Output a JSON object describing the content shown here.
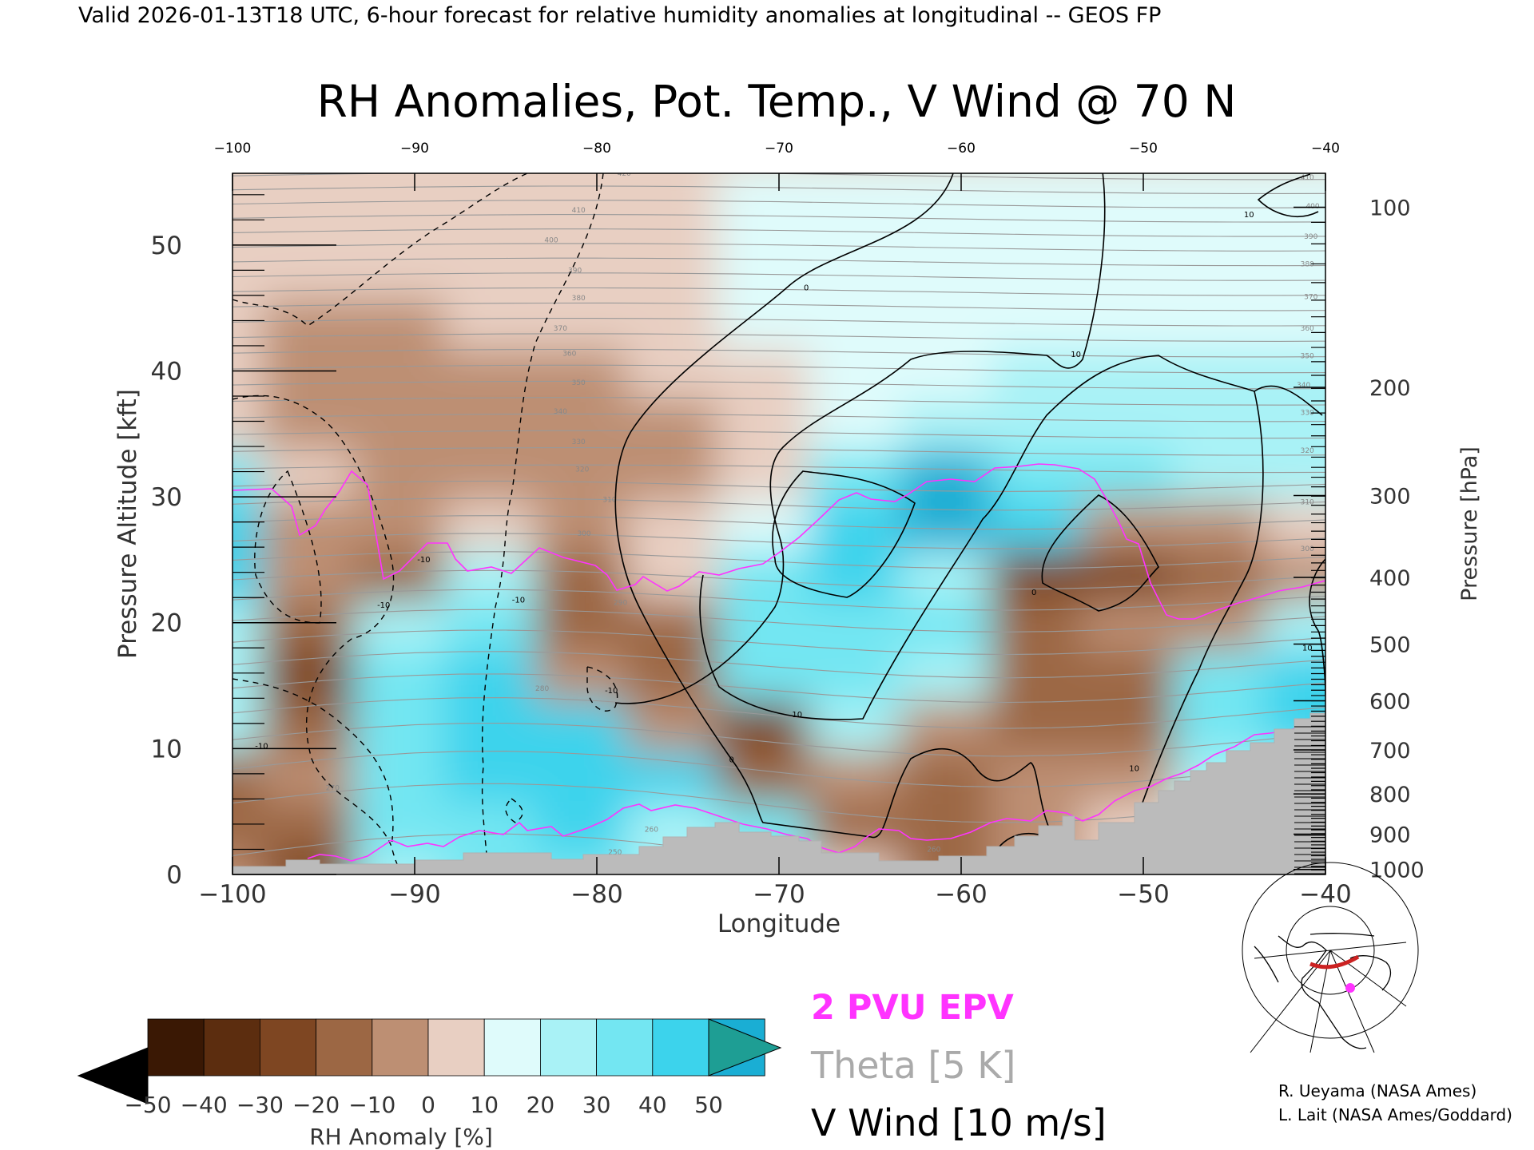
{
  "header": {
    "valid_line": "Valid 2026-01-13T18 UTC, 6-hour forecast for relative humidity anomalies at longitudinal -- GEOS FP"
  },
  "chart_data": {
    "type": "heatmap",
    "title": "RH Anomalies, Pot. Temp., V Wind @ 70 N",
    "xlabel": "Longitude",
    "ylabel_left": "Pressure Altitude [kft]",
    "ylabel_right": "Pressure [hPa]",
    "xlim": [
      -100,
      -40
    ],
    "ylim": [
      0,
      55.7
    ],
    "x_ticks": [
      -100,
      -90,
      -80,
      -70,
      -60,
      -50,
      -40
    ],
    "x_tick_labels": [
      "−100",
      "−90",
      "−80",
      "−70",
      "−60",
      "−50",
      "−40"
    ],
    "top_tick_labels": [
      "−100",
      "−90",
      "−80",
      "−70",
      "−60",
      "−50",
      "−40"
    ],
    "y_ticks": [
      0,
      10,
      20,
      30,
      40,
      50
    ],
    "pressure_ticks": [
      {
        "hPa": "100",
        "kft": 53.0
      },
      {
        "hPa": "200",
        "kft": 38.7
      },
      {
        "hPa": "300",
        "kft": 30.1
      },
      {
        "hPa": "400",
        "kft": 23.6
      },
      {
        "hPa": "500",
        "kft": 18.3
      },
      {
        "hPa": "600",
        "kft": 13.8
      },
      {
        "hPa": "700",
        "kft": 9.9
      },
      {
        "hPa": "800",
        "kft": 6.4
      },
      {
        "hPa": "900",
        "kft": 3.2
      },
      {
        "hPa": "1000",
        "kft": 0.4
      }
    ],
    "rh_anomaly_field": {
      "x": [
        -100,
        -95,
        -90,
        -85,
        -80,
        -75,
        -70,
        -65,
        -60,
        -55,
        -50,
        -45,
        -40
      ],
      "z": [
        1,
        5,
        9,
        13,
        17,
        21,
        25,
        29,
        33,
        37,
        41,
        45,
        49,
        53
      ],
      "values": [
        [
          -20,
          -35,
          15,
          25,
          20,
          10,
          15,
          -10,
          -25,
          -15,
          -10,
          0,
          10
        ],
        [
          -30,
          -25,
          20,
          25,
          30,
          15,
          20,
          -25,
          -30,
          -20,
          -10,
          5,
          10
        ],
        [
          -30,
          -20,
          25,
          30,
          35,
          35,
          -30,
          -20,
          -25,
          -15,
          -20,
          10,
          15
        ],
        [
          10,
          -25,
          25,
          30,
          35,
          -20,
          -35,
          15,
          -20,
          -30,
          -25,
          25,
          30
        ],
        [
          10,
          -35,
          20,
          30,
          -20,
          -30,
          20,
          25,
          15,
          -30,
          -25,
          25,
          35
        ],
        [
          15,
          -30,
          15,
          20,
          -25,
          -25,
          20,
          25,
          20,
          -30,
          -20,
          -15,
          10
        ],
        [
          30,
          -20,
          -25,
          15,
          -25,
          -10,
          20,
          35,
          15,
          -35,
          -35,
          -25,
          -15
        ],
        [
          35,
          -15,
          -20,
          -10,
          -15,
          -10,
          5,
          35,
          40,
          30,
          -15,
          -20,
          -10
        ],
        [
          25,
          -10,
          -15,
          -15,
          -15,
          -15,
          -5,
          20,
          40,
          25,
          20,
          10,
          15
        ],
        [
          -10,
          -15,
          -15,
          -15,
          -15,
          -15,
          -10,
          5,
          15,
          15,
          15,
          10,
          15
        ],
        [
          -10,
          -15,
          -15,
          -15,
          -15,
          -10,
          -5,
          0,
          5,
          10,
          10,
          10,
          10
        ],
        [
          -10,
          -15,
          -15,
          -10,
          -10,
          -5,
          0,
          0,
          5,
          5,
          5,
          5,
          5
        ],
        [
          -10,
          -10,
          -10,
          -10,
          -5,
          -5,
          0,
          0,
          5,
          5,
          5,
          5,
          5
        ],
        [
          -10,
          -10,
          -10,
          -5,
          -5,
          -5,
          0,
          0,
          0,
          5,
          5,
          5,
          5
        ]
      ]
    },
    "theta_label_samples": [
      {
        "value": "420",
        "x": -78.5,
        "z": 55.5
      },
      {
        "value": "410",
        "x": -81,
        "z": 52.6
      },
      {
        "value": "400",
        "x": -82.5,
        "z": 50.2
      },
      {
        "value": "390",
        "x": -81.2,
        "z": 47.8
      },
      {
        "value": "380",
        "x": -81,
        "z": 45.6
      },
      {
        "value": "370",
        "x": -82,
        "z": 43.2
      },
      {
        "value": "360",
        "x": -81.5,
        "z": 41.2
      },
      {
        "value": "350",
        "x": -81,
        "z": 38.9
      },
      {
        "value": "340",
        "x": -82,
        "z": 36.6
      },
      {
        "value": "330",
        "x": -81,
        "z": 34.2
      },
      {
        "value": "320",
        "x": -80.8,
        "z": 32.0
      },
      {
        "value": "310",
        "x": -79.3,
        "z": 29.6
      },
      {
        "value": "300",
        "x": -80.7,
        "z": 26.9
      },
      {
        "value": "290",
        "x": -78.7,
        "z": 21.4
      },
      {
        "value": "280",
        "x": -83,
        "z": 14.6
      },
      {
        "value": "270",
        "x": -94.5,
        "z": 6.7
      },
      {
        "value": "260",
        "x": -77,
        "z": 3.4
      },
      {
        "value": "250",
        "x": -79,
        "z": 1.6
      },
      {
        "value": "260",
        "x": -61.5,
        "z": 1.8
      },
      {
        "value": "410",
        "x": -41,
        "z": 55.2
      },
      {
        "value": "400",
        "x": -40.7,
        "z": 52.9
      },
      {
        "value": "390",
        "x": -40.8,
        "z": 50.5
      },
      {
        "value": "380",
        "x": -41,
        "z": 48.3
      },
      {
        "value": "370",
        "x": -40.8,
        "z": 45.7
      },
      {
        "value": "360",
        "x": -41,
        "z": 43.2
      },
      {
        "value": "350",
        "x": -41,
        "z": 41
      },
      {
        "value": "340",
        "x": -41.2,
        "z": 38.7
      },
      {
        "value": "330",
        "x": -41,
        "z": 36.5
      },
      {
        "value": "320",
        "x": -41,
        "z": 33.5
      },
      {
        "value": "310",
        "x": -41,
        "z": 29.4
      },
      {
        "value": "300",
        "x": -41,
        "z": 25.7
      }
    ],
    "vwind_contour_labels": [
      {
        "value": "0",
        "x": -68.5,
        "z": 46.4
      },
      {
        "value": "10",
        "x": -53.7,
        "z": 41.1
      },
      {
        "value": "10",
        "x": -44.2,
        "z": 52.2
      },
      {
        "value": "-10",
        "x": -91.7,
        "z": 21.2
      },
      {
        "value": "-10",
        "x": -89.5,
        "z": 24.8
      },
      {
        "value": "10",
        "x": -69,
        "z": 12.5
      },
      {
        "value": "0",
        "x": -72.6,
        "z": 8.9
      },
      {
        "value": "0",
        "x": -56,
        "z": 22.2
      },
      {
        "value": "-10",
        "x": -98.4,
        "z": 10.0
      },
      {
        "value": "-10",
        "x": -84.3,
        "z": 21.6
      },
      {
        "value": "-10",
        "x": -79.2,
        "z": 14.4
      },
      {
        "value": "10",
        "x": -55.5,
        "z": 3.2
      },
      {
        "value": "10",
        "x": -50.5,
        "z": 8.2
      },
      {
        "value": "10",
        "x": -41,
        "z": 17.8
      }
    ],
    "legend": {
      "epv": "2 PVU EPV",
      "theta": "Theta [5 K]",
      "vwind": "V Wind [10 m/s]"
    },
    "colorbar": {
      "label": "RH Anomaly [%]",
      "ticks": [
        "−50",
        "−40",
        "−30",
        "−20",
        "−10",
        "0",
        "10",
        "20",
        "30",
        "40",
        "50"
      ],
      "colors": [
        "#3a1804",
        "#5c2d0f",
        "#7e4622",
        "#9c6744",
        "#bd8f73",
        "#e8cfc2",
        "#dffbfb",
        "#a9f2f6",
        "#73e6f2",
        "#3cd3ec",
        "#1aaed4",
        "#0b7f9c"
      ],
      "under_color": "#000000",
      "over_color": "#1e9e94"
    },
    "colors": {
      "epv": "#ff33ff",
      "theta": "#999999",
      "vwind": "#000000",
      "terrain": "#bbbbbb"
    }
  },
  "credits": {
    "line1": "R. Ueyama (NASA Ames)",
    "line2": "L. Lait (NASA Ames/Goddard)"
  }
}
